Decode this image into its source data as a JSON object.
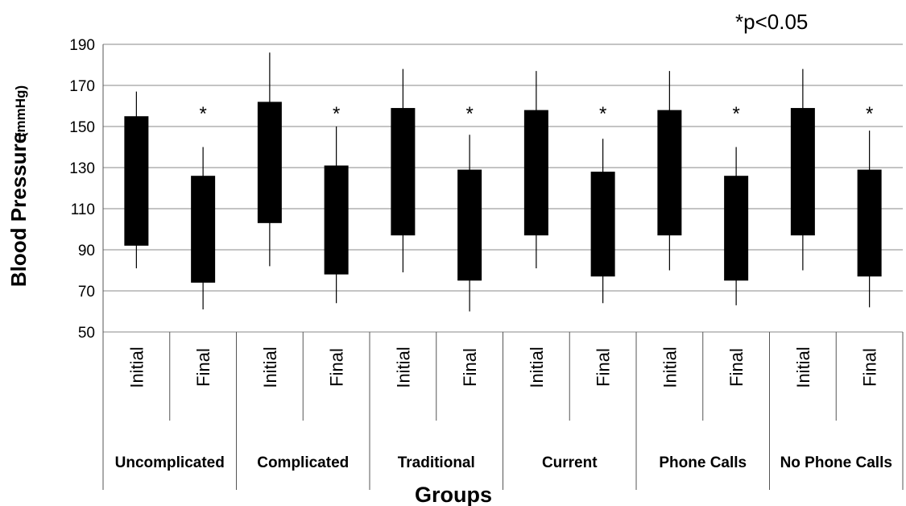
{
  "chart_data": {
    "type": "box",
    "title": "",
    "ylabel": "Blood Pressure",
    "ylabel_unit": "(mmHg)",
    "xlabel": "Groups",
    "annotation": "*p<0.05",
    "significance_marker": "*",
    "ylim": [
      50,
      190
    ],
    "yticks": [
      "50",
      "70",
      "90",
      "110",
      "130",
      "150",
      "170",
      "190"
    ],
    "grid": true,
    "groups": [
      {
        "name": "Uncomplicated",
        "boxes": [
          {
            "label": "Initial",
            "whisker_high": 167,
            "box_high": 155,
            "box_low": 92,
            "whisker_low": 81,
            "significant": false
          },
          {
            "label": "Final",
            "whisker_high": 140,
            "box_high": 126,
            "box_low": 74,
            "whisker_low": 61,
            "significant": true
          }
        ]
      },
      {
        "name": "Complicated",
        "boxes": [
          {
            "label": "Initial",
            "whisker_high": 186,
            "box_high": 162,
            "box_low": 103,
            "whisker_low": 82,
            "significant": false
          },
          {
            "label": "Final",
            "whisker_high": 150,
            "box_high": 131,
            "box_low": 78,
            "whisker_low": 64,
            "significant": true
          }
        ]
      },
      {
        "name": "Traditional",
        "boxes": [
          {
            "label": "Initial",
            "whisker_high": 178,
            "box_high": 159,
            "box_low": 97,
            "whisker_low": 79,
            "significant": false
          },
          {
            "label": "Final",
            "whisker_high": 146,
            "box_high": 129,
            "box_low": 75,
            "whisker_low": 60,
            "significant": true
          }
        ]
      },
      {
        "name": "Current",
        "boxes": [
          {
            "label": "Initial",
            "whisker_high": 177,
            "box_high": 158,
            "box_low": 97,
            "whisker_low": 81,
            "significant": false
          },
          {
            "label": "Final",
            "whisker_high": 144,
            "box_high": 128,
            "box_low": 77,
            "whisker_low": 64,
            "significant": true
          }
        ]
      },
      {
        "name": "Phone Calls",
        "boxes": [
          {
            "label": "Initial",
            "whisker_high": 177,
            "box_high": 158,
            "box_low": 97,
            "whisker_low": 80,
            "significant": false
          },
          {
            "label": "Final",
            "whisker_high": 140,
            "box_high": 126,
            "box_low": 75,
            "whisker_low": 63,
            "significant": true
          }
        ]
      },
      {
        "name": "No Phone Calls",
        "boxes": [
          {
            "label": "Initial",
            "whisker_high": 178,
            "box_high": 159,
            "box_low": 97,
            "whisker_low": 80,
            "significant": false
          },
          {
            "label": "Final",
            "whisker_high": 148,
            "box_high": 129,
            "box_low": 77,
            "whisker_low": 62,
            "significant": true
          }
        ]
      }
    ],
    "colors": {
      "box": "#000000",
      "grid": "#8a8a8a",
      "axis": "#555555"
    }
  }
}
